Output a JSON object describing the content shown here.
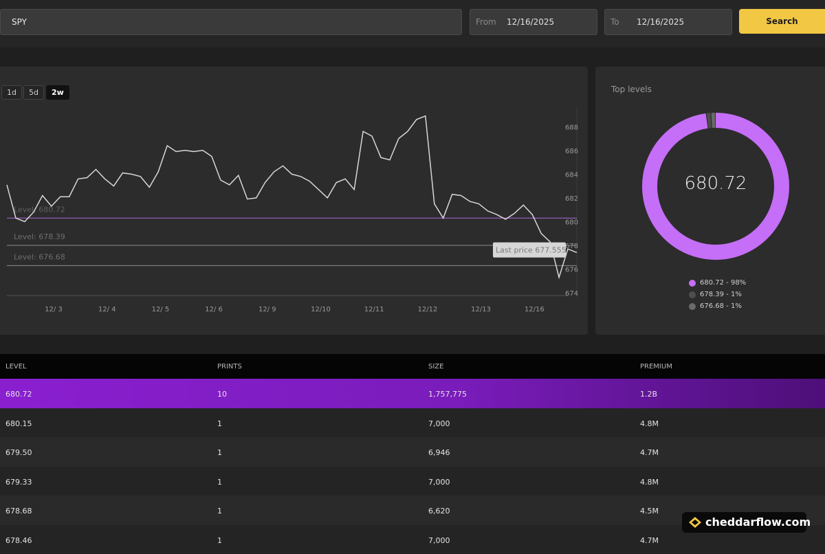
{
  "search": {
    "value": "SPY"
  },
  "from": {
    "label": "From",
    "value": "12/16/2025"
  },
  "to": {
    "label": "To",
    "value": "12/16/2025"
  },
  "search_button": "Search",
  "ranges": [
    "1d",
    "5d",
    "2w"
  ],
  "active_range": "2w",
  "colors": {
    "accent": "#f2c744",
    "level_primary": "#c56ef7",
    "purple_row": "#8a1fd0"
  },
  "chart_data": {
    "type": "line",
    "title": "",
    "x_ticks": [
      "12/ 3",
      "12/ 4",
      "12/ 5",
      "12/ 6",
      "12/ 9",
      "12/10",
      "12/11",
      "12/12",
      "12/13",
      "12/16"
    ],
    "y_ticks": [
      674,
      676,
      678,
      680,
      682,
      684,
      686,
      688
    ],
    "ylim": [
      673.6,
      689.0
    ],
    "series": [
      {
        "name": "SPY",
        "values": [
          683.1,
          680.3,
          680.0,
          680.8,
          682.2,
          681.3,
          682.1,
          682.1,
          683.6,
          683.7,
          684.4,
          683.6,
          683.0,
          684.1,
          684.0,
          683.8,
          682.9,
          684.2,
          686.4,
          685.9,
          686.0,
          685.9,
          686.0,
          685.5,
          683.5,
          683.1,
          683.9,
          681.9,
          682.0,
          683.3,
          684.2,
          684.7,
          684.0,
          683.8,
          683.4,
          682.7,
          682.0,
          683.3,
          683.6,
          682.7,
          687.6,
          687.2,
          685.4,
          685.2,
          687.0,
          687.6,
          688.6,
          688.9,
          681.5,
          680.3,
          682.3,
          682.2,
          681.7,
          681.5,
          680.9,
          680.6,
          680.2,
          680.7,
          681.4,
          680.6,
          679.0,
          678.3,
          675.3,
          677.7,
          677.4
        ]
      }
    ],
    "levels": [
      {
        "label": "Level: 680.72",
        "value": 680.3
      },
      {
        "label": "Level: 678.39",
        "value": 678.0
      },
      {
        "label": "Level: 676.68",
        "value": 676.3
      }
    ],
    "last_price": {
      "label": "Last price 677.555",
      "value": 677.555
    }
  },
  "top_levels": {
    "title": "Top levels",
    "center_value": "680.72",
    "segments": [
      {
        "label": "680.72 - 98%",
        "pct": 98,
        "color": "#c56ef7"
      },
      {
        "label": "678.39 - 1%",
        "pct": 1,
        "color": "#4e4e4e"
      },
      {
        "label": "676.68 - 1%",
        "pct": 1,
        "color": "#6a6a6a"
      }
    ]
  },
  "table": {
    "headers": [
      "LEVEL",
      "PRINTS",
      "SIZE",
      "PREMIUM"
    ],
    "rows": [
      [
        "680.72",
        "10",
        "1,757,775",
        "1.2B"
      ],
      [
        "680.15",
        "1",
        "7,000",
        "4.8M"
      ],
      [
        "679.50",
        "1",
        "6,946",
        "4.7M"
      ],
      [
        "679.33",
        "1",
        "7,000",
        "4.8M"
      ],
      [
        "678.68",
        "1",
        "6,620",
        "4.5M"
      ],
      [
        "678.46",
        "1",
        "7,000",
        "4.7M"
      ]
    ]
  },
  "brand": "cheddarflow.com"
}
